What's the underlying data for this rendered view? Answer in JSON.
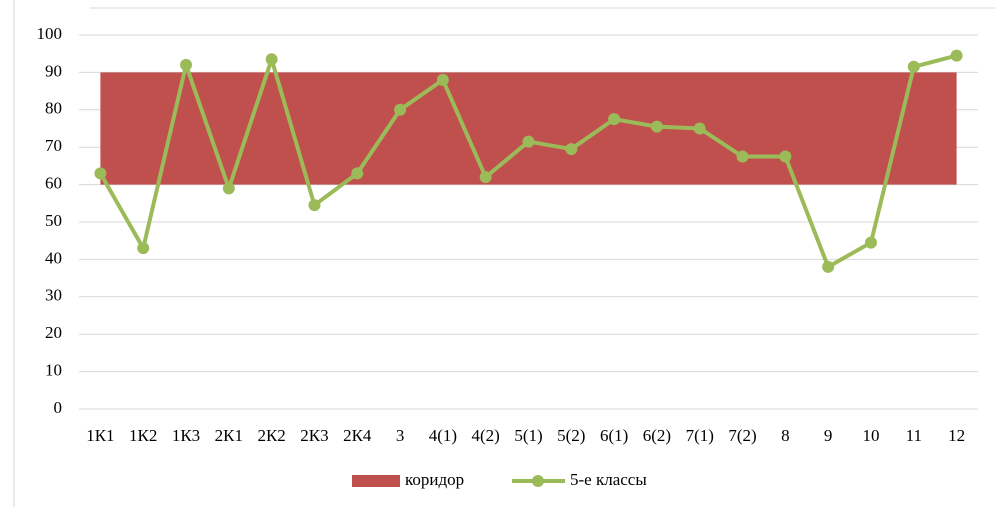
{
  "chart_data": {
    "type": "line",
    "categories": [
      "1К1",
      "1К2",
      "1К3",
      "2К1",
      "2К2",
      "2К3",
      "2К4",
      "3",
      "4(1)",
      "4(2)",
      "5(1)",
      "5(2)",
      "6(1)",
      "6(2)",
      "7(1)",
      "7(2)",
      "8",
      "9",
      "10",
      "11",
      "12"
    ],
    "corridor": {
      "name": "коридор",
      "color": "#c0504d",
      "from": 60,
      "to": 90
    },
    "series": [
      {
        "name": "5-е классы",
        "color": "#9bbb59",
        "values": [
          63,
          43,
          92,
          59,
          93.5,
          54.5,
          63,
          80,
          88,
          62,
          71.5,
          69.5,
          77.5,
          75.5,
          75,
          67.5,
          67.5,
          38,
          44.5,
          91.5,
          94.5
        ]
      }
    ],
    "ylim": [
      0,
      100
    ],
    "yticks": [
      0,
      10,
      20,
      30,
      40,
      50,
      60,
      70,
      80,
      90,
      100
    ],
    "grid": true,
    "legend": "bottom"
  }
}
